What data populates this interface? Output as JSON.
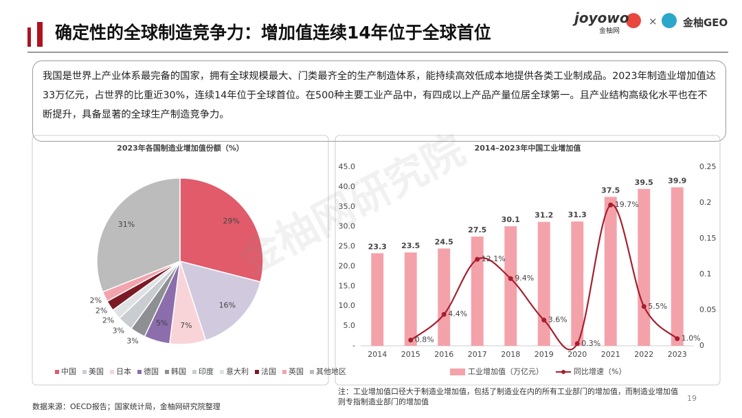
{
  "header": {
    "title": "确定性的全球制造竞争力：增加值连续14年位于全球首位",
    "logo_left": "joyowo",
    "logo_left_sub": "金柚网",
    "logo_sep": "×",
    "logo_right": "金柚GEO"
  },
  "intro": "我国是世界上产业体系最完备的国家，拥有全球规模最大、门类最齐全的生产制造体系，能持续高效低成本地提供各类工业制成品。2023年制造业增加值达33万亿元，占世界的比重近30%，连续14年位于全球首位。在500种主要工业产品中，有四成以上产品产量位居全球第一。且产业结构高级化水平也在不断提升，具备显著的全球生产制造竞争力。",
  "watermark": "金柚网研究院",
  "chart_data": [
    {
      "type": "pie",
      "title": "2023年各国制造业增加值份额（%）",
      "categories": [
        "中国",
        "美国",
        "日本",
        "德国",
        "韩国",
        "印度",
        "意大利",
        "法国",
        "英国",
        "其他地区"
      ],
      "values": [
        29,
        16,
        7,
        5,
        3,
        3,
        2,
        2,
        2,
        31
      ],
      "value_labels": [
        "29%",
        "16%",
        "7%",
        "5%",
        "3%",
        "3%",
        "2%",
        "2%",
        "2%",
        "31%"
      ],
      "colors": [
        "#e15b6b",
        "#d1c9de",
        "#f8d4d9",
        "#8b6eab",
        "#8d8f92",
        "#c9cdd1",
        "#dfe2e5",
        "#7b1a25",
        "#f2a3ad",
        "#bcbcbc"
      ]
    },
    {
      "type": "bar",
      "title": "2014–2023年中国工业增加值",
      "categories": [
        "2014",
        "2015",
        "2016",
        "2017",
        "2018",
        "2019",
        "2020",
        "2021",
        "2022",
        "2023"
      ],
      "series": [
        {
          "name": "工业增加值（万亿元）",
          "color": "#f4a2aa",
          "values": [
            23.3,
            23.5,
            24.5,
            27.5,
            30.1,
            31.2,
            31.3,
            37.5,
            39.5,
            39.9
          ]
        },
        {
          "name": "同比增速（%）",
          "type": "line",
          "axis": "y2",
          "color": "#a51f2d",
          "values": [
            null,
            0.008,
            0.044,
            0.121,
            0.094,
            0.036,
            0.003,
            0.197,
            0.055,
            0.01
          ],
          "value_labels": [
            null,
            "0.8%",
            "4.4%",
            "12.1%",
            "9.4%",
            "3.6%",
            "0.3%",
            "19.7%",
            "5.5%",
            "1.0%"
          ]
        }
      ],
      "ylim": [
        0,
        45
      ],
      "yticks": [
        {
          "value": 0,
          "label": "-"
        },
        {
          "value": 5,
          "label": "5.0"
        },
        {
          "value": 10,
          "label": "10.0"
        },
        {
          "value": 15,
          "label": "15.0"
        },
        {
          "value": 20,
          "label": "20.0"
        },
        {
          "value": 25,
          "label": "25.0"
        },
        {
          "value": 30,
          "label": "30.0"
        },
        {
          "value": 35,
          "label": "35.0"
        },
        {
          "value": 40,
          "label": "40.0"
        },
        {
          "value": 45,
          "label": "45.0"
        }
      ],
      "y2lim": [
        0,
        0.25
      ],
      "y2ticks": [
        0,
        0.05,
        0.1,
        0.15,
        0.2,
        0.25
      ],
      "grid": false
    }
  ],
  "note": "注：工业增加值口径大于制造业增加值，包括了制造业在内的所有工业部门的增加值，而制造业增加值则专指制造业部门的增加值",
  "source": "数据来源：OECD报告；国家统计局，金柚网研究院整理",
  "page_number": "19"
}
